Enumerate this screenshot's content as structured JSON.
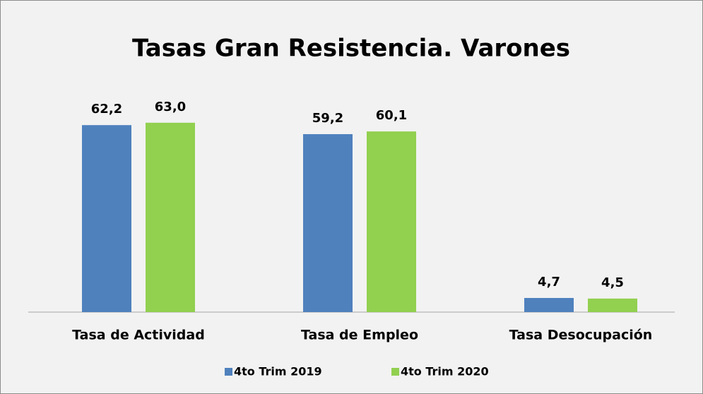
{
  "chart_data": {
    "type": "bar",
    "title": "Tasas Gran Resistencia. Varones",
    "categories": [
      "Tasa de Actividad",
      "Tasa de Empleo",
      "Tasa Desocupación"
    ],
    "series": [
      {
        "name": "4to Trim 2019",
        "color": "#4f81bd",
        "values": [
          62.2,
          59.2,
          4.7
        ],
        "value_labels": [
          "62,2",
          "59,2",
          "4,7"
        ]
      },
      {
        "name": "4to Trim 2020",
        "color": "#92d050",
        "values": [
          63.0,
          60.1,
          4.5
        ],
        "value_labels": [
          "63,0",
          "60,1",
          "4,5"
        ]
      }
    ],
    "ylim": [
      0,
      70
    ],
    "legend": "bottom"
  }
}
